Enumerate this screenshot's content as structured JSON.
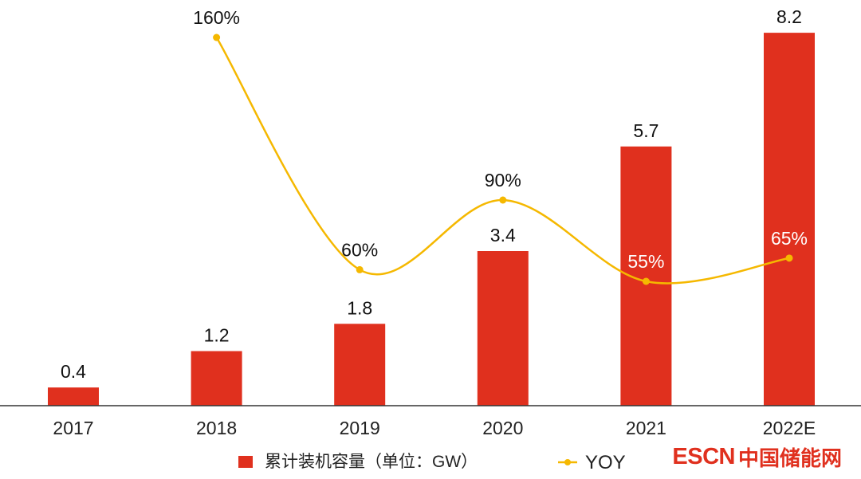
{
  "chart_data": {
    "type": "bar",
    "categories": [
      "2017",
      "2018",
      "2019",
      "2020",
      "2021",
      "2022E"
    ],
    "series": [
      {
        "name": "累计装机容量（单位：GW）",
        "kind": "bar",
        "values": [
          0.4,
          1.2,
          1.8,
          3.4,
          5.7,
          8.2
        ],
        "labels": [
          "0.4",
          "1.2",
          "1.8",
          "3.4",
          "5.7",
          "8.2"
        ],
        "color": "#e0301e"
      },
      {
        "name": "YOY",
        "kind": "line",
        "values": [
          null,
          160,
          60,
          90,
          55,
          65
        ],
        "labels": [
          "",
          "160%",
          "60%",
          "90%",
          "55%",
          "65%"
        ],
        "color": "#f5b800"
      }
    ],
    "bar_axis": {
      "ylim": [
        0,
        8.5
      ],
      "unit": "GW"
    },
    "line_axis": {
      "ylim": [
        0,
        170
      ],
      "unit": "%"
    },
    "legend_position": "bottom",
    "grid": false
  },
  "watermark": {
    "latin": "ESCN",
    "cjk": "中国储能网",
    "color": "#e0301e"
  }
}
